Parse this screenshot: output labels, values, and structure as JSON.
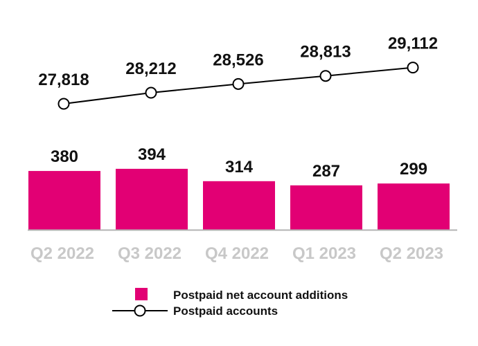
{
  "chart_data": {
    "type": "bar",
    "categories": [
      "Q2 2022",
      "Q3 2022",
      "Q4 2022",
      "Q1 2023",
      "Q2 2023"
    ],
    "series": [
      {
        "name": "Postpaid net account additions",
        "type": "bar",
        "values": [
          380,
          394,
          314,
          287,
          299
        ],
        "labels": [
          "380",
          "394",
          "314",
          "287",
          "299"
        ],
        "color": "#e20074"
      },
      {
        "name": "Postpaid accounts",
        "type": "line",
        "values": [
          27818,
          28212,
          28526,
          28813,
          29112
        ],
        "labels": [
          "27,818",
          "28,212",
          "28,526",
          "28,813",
          "29,112"
        ],
        "color": "#000000"
      }
    ],
    "axis_color": "#b3b3b3",
    "category_label_color": "#c8c8c8",
    "grid": false,
    "legend_position": "bottom"
  }
}
